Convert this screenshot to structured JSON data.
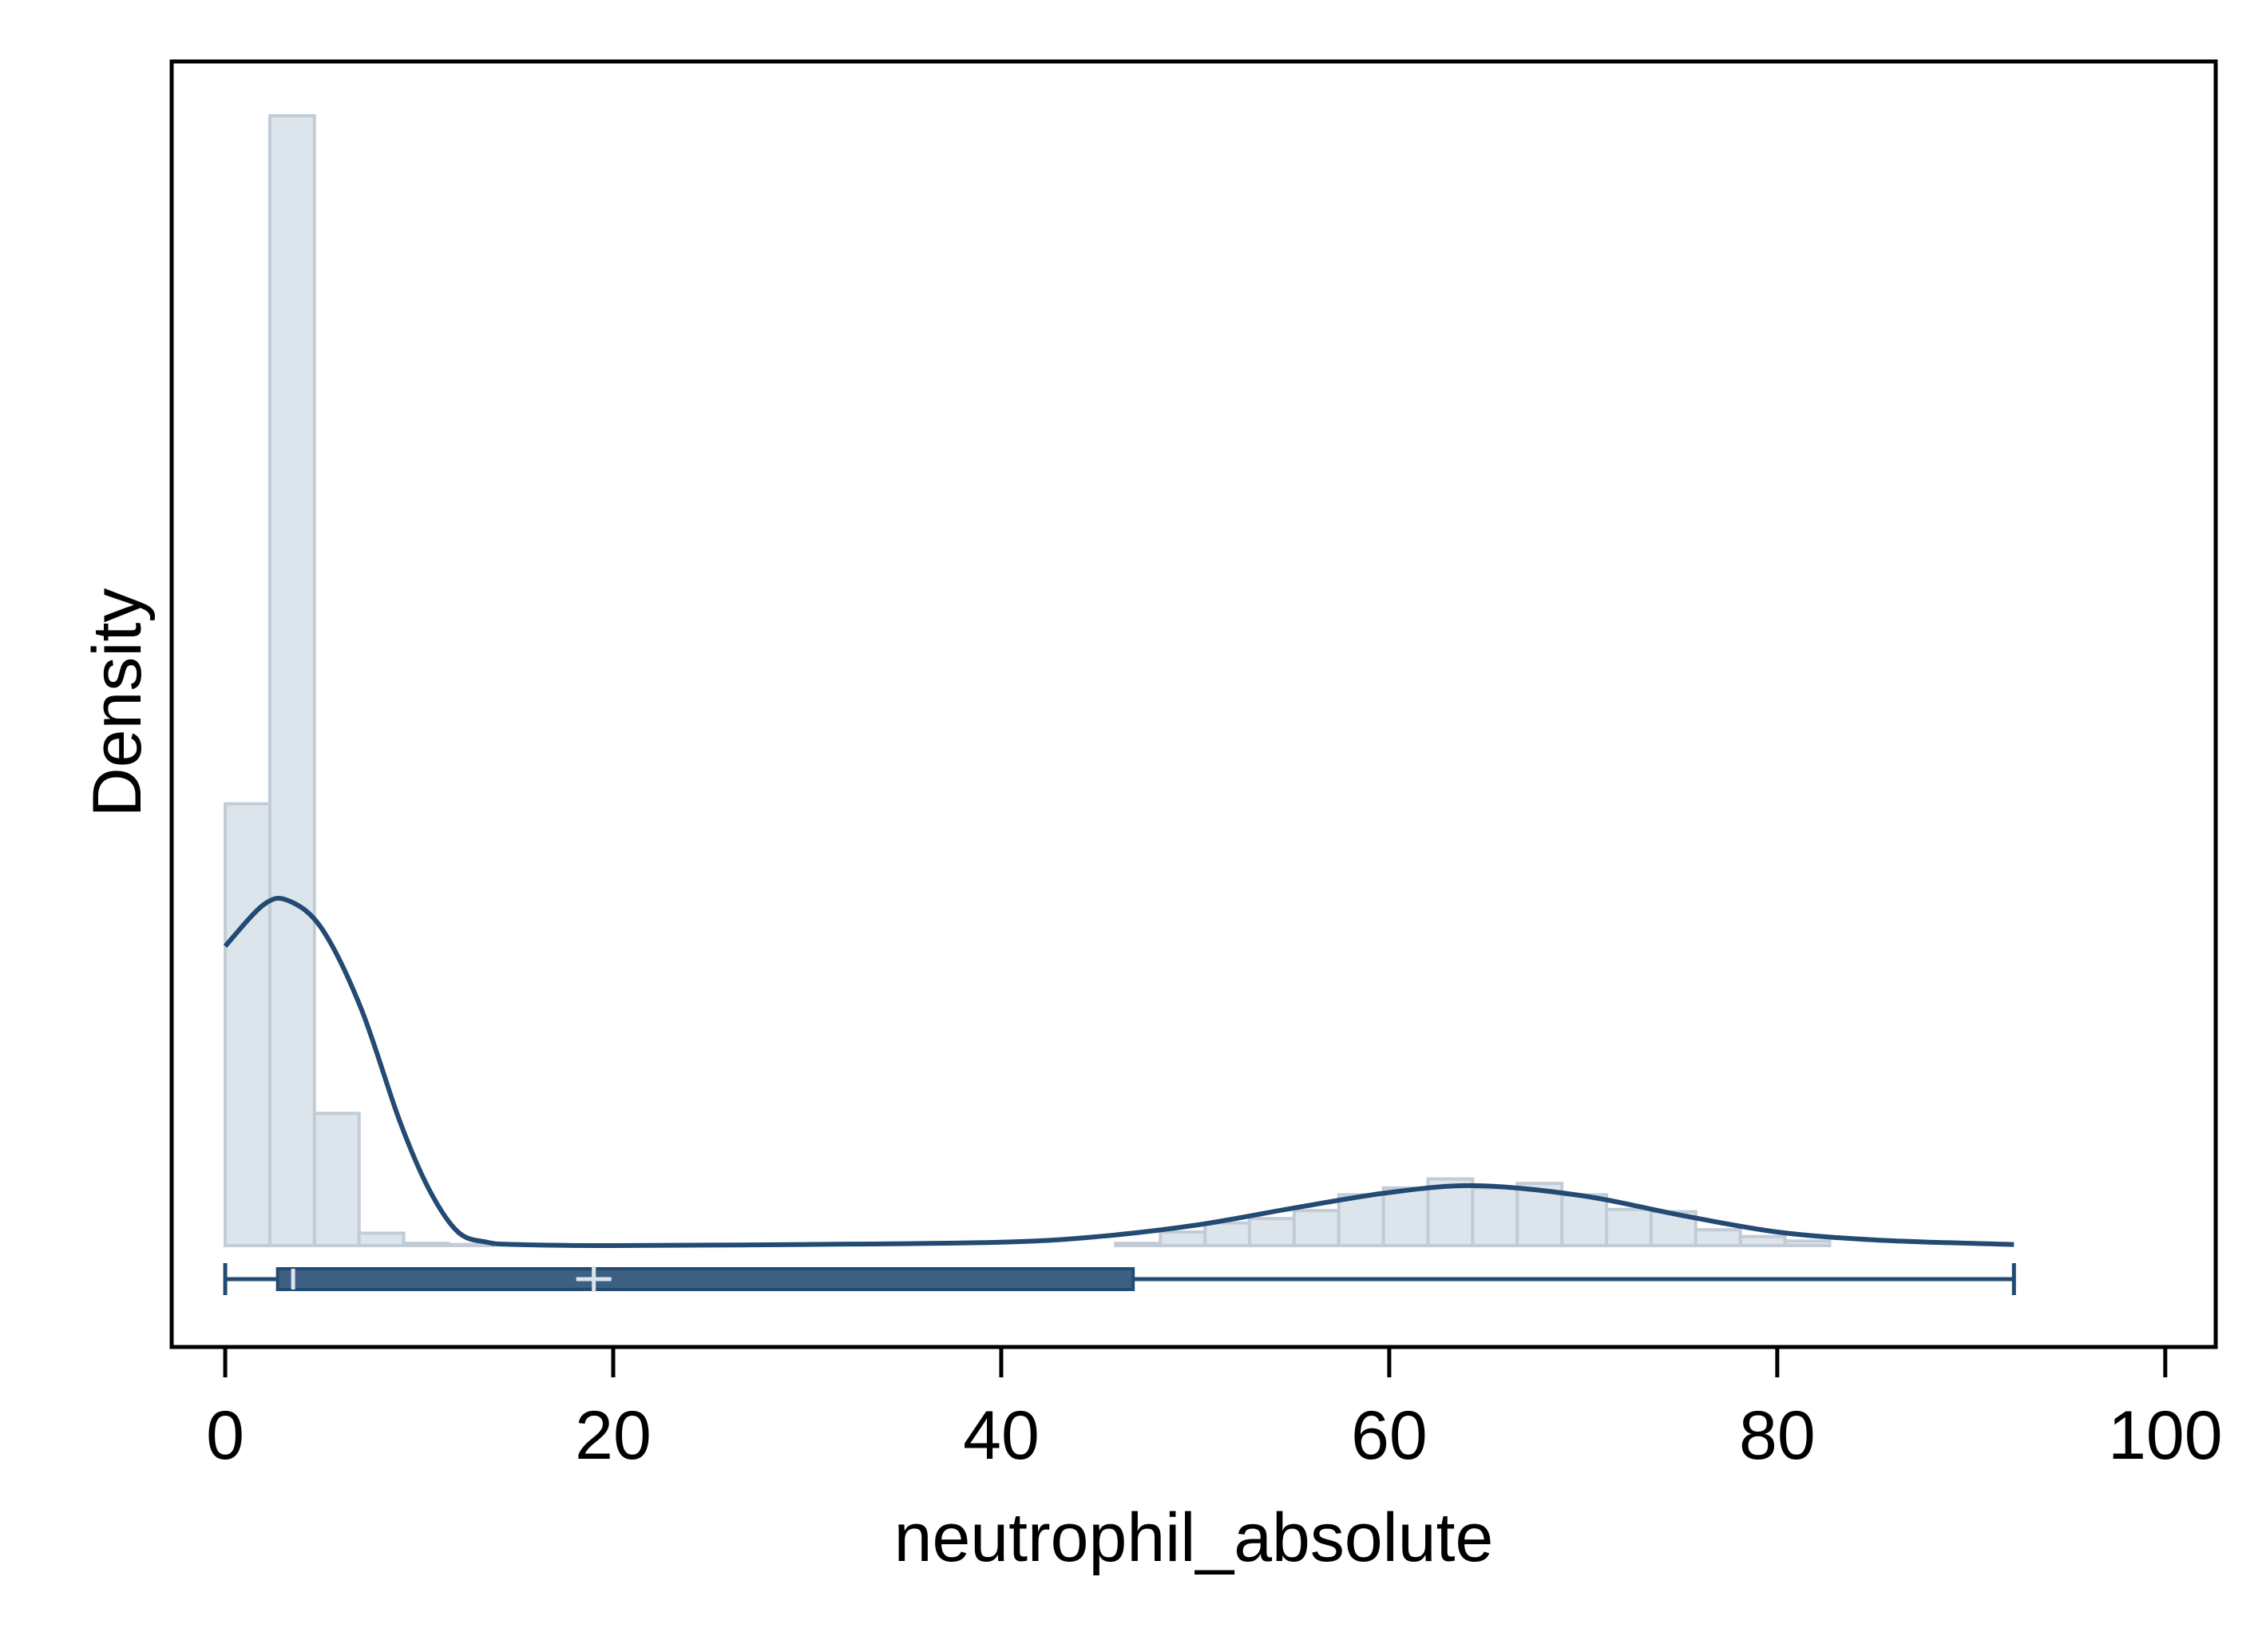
{
  "chart_data": {
    "type": "histogram",
    "title": "",
    "xlabel": "neutrophil_absolute",
    "ylabel": "Density",
    "xlim": [
      -2.76,
      102.6
    ],
    "ylim": [
      0,
      1
    ],
    "x_ticks": [
      0,
      20,
      40,
      60,
      80,
      100
    ],
    "y_ticks": [],
    "grid": false,
    "legend": "none",
    "histogram": {
      "bin_width": 2.3,
      "bins": [
        {
          "x0": 0.0,
          "density": 0.391
        },
        {
          "x0": 2.3,
          "density": 1.0
        },
        {
          "x0": 4.6,
          "density": 0.117
        },
        {
          "x0": 6.9,
          "density": 0.011
        },
        {
          "x0": 9.2,
          "density": 0.002
        },
        {
          "x0": 11.5,
          "density": 0.001
        },
        {
          "x0": 45.9,
          "density": 0.002
        },
        {
          "x0": 48.2,
          "density": 0.012
        },
        {
          "x0": 50.5,
          "density": 0.02
        },
        {
          "x0": 52.8,
          "density": 0.024
        },
        {
          "x0": 55.1,
          "density": 0.031
        },
        {
          "x0": 57.4,
          "density": 0.045
        },
        {
          "x0": 59.7,
          "density": 0.051
        },
        {
          "x0": 62.0,
          "density": 0.059
        },
        {
          "x0": 64.3,
          "density": 0.051
        },
        {
          "x0": 66.6,
          "density": 0.055
        },
        {
          "x0": 68.9,
          "density": 0.045
        },
        {
          "x0": 71.2,
          "density": 0.032
        },
        {
          "x0": 73.5,
          "density": 0.03
        },
        {
          "x0": 75.8,
          "density": 0.014
        },
        {
          "x0": 78.1,
          "density": 0.008
        },
        {
          "x0": 80.4,
          "density": 0.004
        }
      ]
    },
    "density_curve": {
      "x": [
        0,
        2,
        3.3,
        5,
        7,
        9,
        10.5,
        12,
        13.5,
        15,
        20,
        30,
        40,
        45,
        50,
        55,
        60,
        64.5,
        70,
        75,
        80,
        85,
        90,
        92.2
      ],
      "y": [
        0.265,
        0.302,
        0.305,
        0.28,
        0.21,
        0.11,
        0.05,
        0.012,
        0.003,
        0.001,
        0.0,
        0.001,
        0.003,
        0.008,
        0.018,
        0.033,
        0.047,
        0.053,
        0.044,
        0.027,
        0.012,
        0.005,
        0.002,
        0.001
      ]
    },
    "boxplot": {
      "min": 0.0,
      "q1": 2.7,
      "median": 3.5,
      "mean": 19.0,
      "q3": 46.8,
      "max": 92.2
    },
    "colors": {
      "bar_fill": "#dce4ec",
      "bar_stroke": "#c3ccd6",
      "curve": "#234a72",
      "box_fill": "#3d5f84",
      "box_stroke": "#234a72",
      "box_marks": "#dce4ec",
      "axis": "#000000"
    }
  }
}
